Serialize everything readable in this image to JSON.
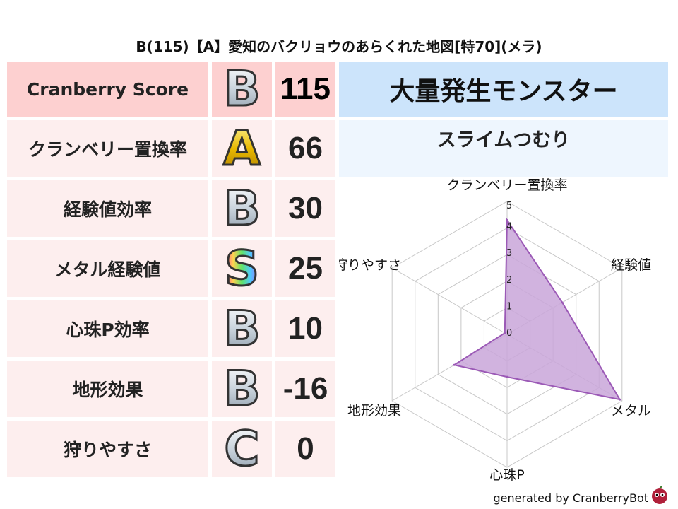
{
  "title": "B(115)【A】愛知のバクリョウのあらくれた地図[特70](メラ)",
  "rows": [
    {
      "label": "Cranberry Score",
      "grade": "B",
      "value": "115"
    },
    {
      "label": "クランベリー置換率",
      "grade": "A",
      "value": "66"
    },
    {
      "label": "経験値効率",
      "grade": "B",
      "value": "30"
    },
    {
      "label": "メタル経験値",
      "grade": "S",
      "value": "25"
    },
    {
      "label": "心珠P効率",
      "grade": "B",
      "value": "10"
    },
    {
      "label": "地形効果",
      "grade": "B",
      "value": "-16"
    },
    {
      "label": "狩りやすさ",
      "grade": "C",
      "value": "0"
    }
  ],
  "monster": {
    "header": "大量発生モンスター",
    "name": "スライムつむり"
  },
  "footer": "generated by CranberryBot",
  "colors": {
    "header_row": "#fdd0d0",
    "row": "#fdeeee",
    "monster_header": "#cce4fb",
    "monster_box": "#eef6fe",
    "radar_line": "#9b59b6",
    "radar_fill": "#c9a6d9"
  },
  "chart_data": {
    "type": "radar",
    "axes": [
      "クランベリー置換率",
      "経験値",
      "メタル",
      "心珠P",
      "地形効果",
      "狩りやすさ"
    ],
    "values": [
      4.3,
      2.4,
      4.9,
      1.6,
      2.3,
      0.1
    ],
    "range": [
      0,
      5
    ],
    "ticks": [
      "0",
      "1",
      "2",
      "3",
      "4",
      "5"
    ],
    "grid": true
  }
}
